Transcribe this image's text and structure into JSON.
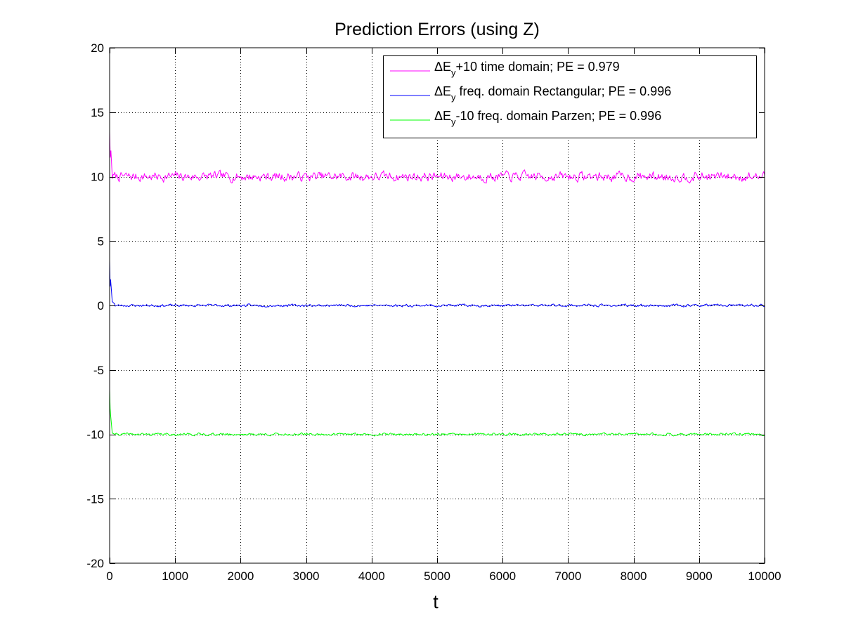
{
  "chart_data": {
    "type": "line",
    "title": "Prediction Errors (using Z)",
    "xlabel": "t",
    "ylabel": "",
    "xlim": [
      0,
      10000
    ],
    "ylim": [
      -20,
      20
    ],
    "xticks": [
      0,
      1000,
      2000,
      3000,
      4000,
      5000,
      6000,
      7000,
      8000,
      9000,
      10000
    ],
    "yticks": [
      -20,
      -15,
      -10,
      -5,
      0,
      5,
      10,
      15,
      20
    ],
    "grid": true,
    "legend_position": "top-right",
    "series": [
      {
        "name": "ΔE_y+10 time domain; PE = 0.979",
        "legend": {
          "pre": "ΔE",
          "sub": "y",
          "post": "+10 time domain; PE = 0.979"
        },
        "color": "#ff00ff",
        "initial_spike": [
          [
            0,
            13.5
          ],
          [
            10,
            11.5
          ],
          [
            20,
            12.0
          ],
          [
            40,
            10.0
          ]
        ],
        "baseline": 10.0,
        "noise_amplitude": 0.35,
        "noise_count": 750,
        "noise_seed": 7
      },
      {
        "name": "ΔE_y freq. domain Rectangular; PE = 0.996",
        "legend": {
          "pre": "ΔE",
          "sub": "y",
          "post": " freq. domain Rectangular; PE = 0.996"
        },
        "color": "#0000ff",
        "initial_spike": [
          [
            0,
            3.5
          ],
          [
            8,
            1.5
          ],
          [
            15,
            2.0
          ],
          [
            40,
            0.3
          ],
          [
            80,
            0.1
          ]
        ],
        "baseline": 0.0,
        "noise_amplitude": 0.09,
        "noise_count": 900,
        "noise_seed": 23
      },
      {
        "name": "ΔE_y-10 freq. domain Parzen; PE = 0.996",
        "legend": {
          "pre": "ΔE",
          "sub": "y",
          "post": "-10 freq. domain Parzen; PE = 0.996"
        },
        "color": "#00ff00",
        "initial_spike": [
          [
            0,
            -6.5
          ],
          [
            8,
            -8.0
          ],
          [
            15,
            -8.5
          ],
          [
            40,
            -9.9
          ],
          [
            80,
            -10.0
          ]
        ],
        "baseline": -10.0,
        "noise_amplitude": 0.09,
        "noise_count": 900,
        "noise_seed": 41
      }
    ]
  }
}
